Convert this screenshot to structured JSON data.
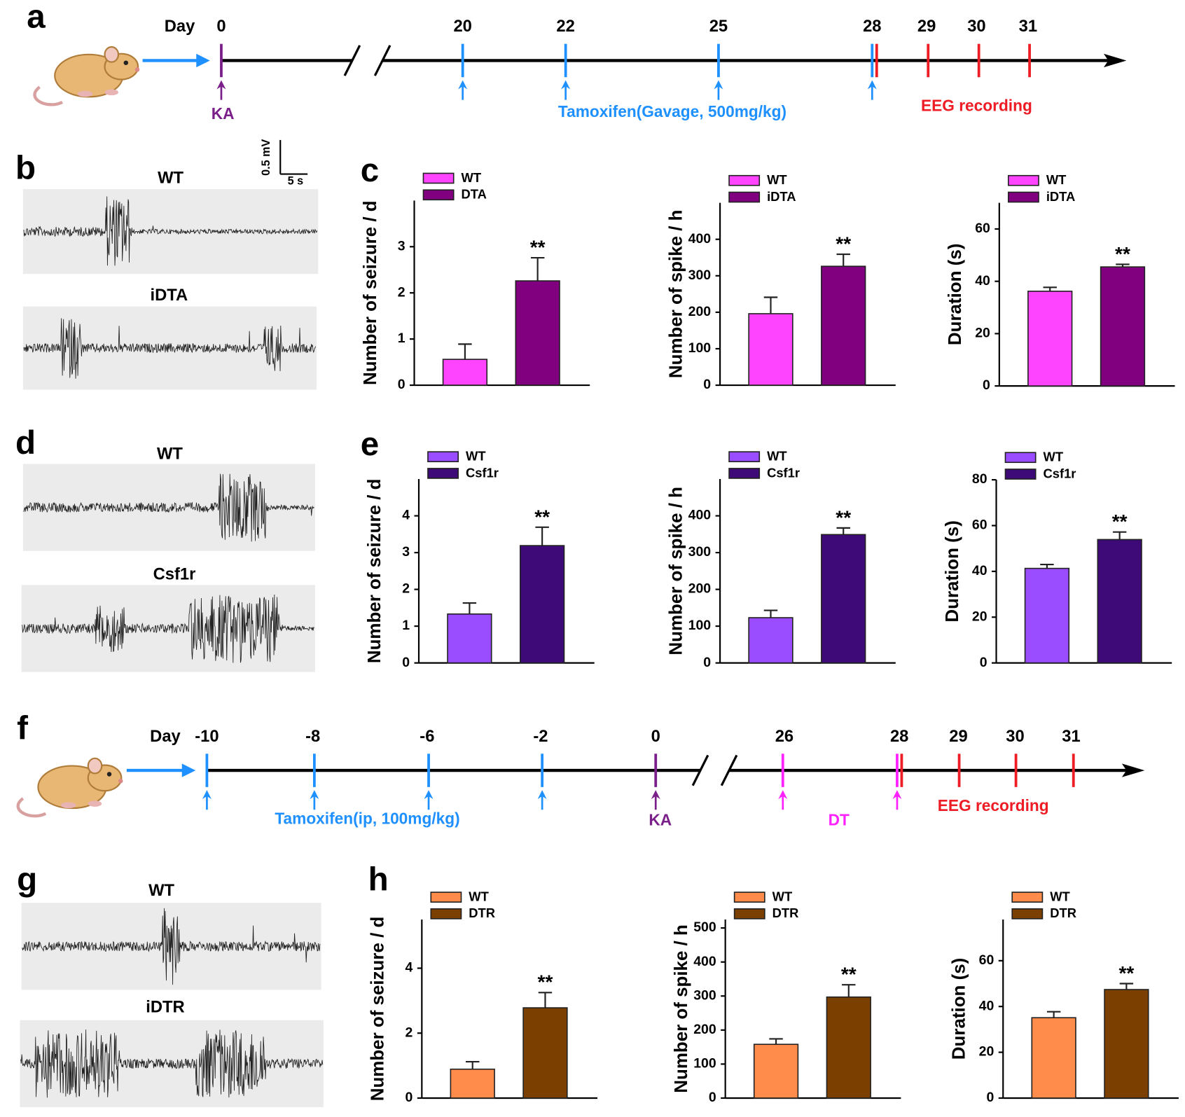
{
  "panel_labels": {
    "a": "a",
    "b": "b",
    "c": "c",
    "d": "d",
    "e": "e",
    "f": "f",
    "g": "g",
    "h": "h"
  },
  "timeline_a": {
    "day_label": "Day",
    "days": [
      "0",
      "20",
      "22",
      "25",
      "28",
      "29",
      "30",
      "31"
    ],
    "ka": "KA",
    "tamoxifen": "Tamoxifen(Gavage, 500mg/kg)",
    "eeg": "EEG recording"
  },
  "timeline_f": {
    "day_label": "Day",
    "days": [
      "-10",
      "-8",
      "-6",
      "-2",
      "0",
      "26",
      "28",
      "29",
      "30",
      "31"
    ],
    "tamoxifen": "Tamoxifen(ip, 100mg/kg)",
    "ka": "KA",
    "dt": "DT",
    "eeg": "EEG recording"
  },
  "traces_b": {
    "labels": [
      "WT",
      "iDTA"
    ],
    "scale_y": "0.5 mV",
    "scale_x": "5 s"
  },
  "traces_d": {
    "labels": [
      "WT",
      "Csf1r"
    ]
  },
  "traces_g": {
    "labels": [
      "WT",
      "iDTR"
    ]
  },
  "chart_data": [
    {
      "type": "bar",
      "ylabel": "Number of seizure / d",
      "ylim": [
        0,
        4
      ],
      "yticks": [
        0,
        1,
        2,
        3
      ],
      "annotation": "**",
      "series": [
        {
          "name": "WT",
          "color": "#ff44ff",
          "values": [
            0.56
          ],
          "errors": [
            0.33
          ]
        },
        {
          "name": "DTA",
          "color": "#800080",
          "values": [
            2.26
          ],
          "errors": [
            0.5
          ]
        }
      ]
    },
    {
      "type": "bar",
      "ylabel": "Number of spike / h",
      "ylim": [
        0,
        500
      ],
      "yticks": [
        0,
        100,
        200,
        300,
        400
      ],
      "annotation": "**",
      "series": [
        {
          "name": "WT",
          "color": "#ff44ff",
          "values": [
            196
          ],
          "errors": [
            45
          ]
        },
        {
          "name": "iDTA",
          "color": "#800080",
          "values": [
            326
          ],
          "errors": [
            33
          ]
        }
      ]
    },
    {
      "type": "bar",
      "ylabel": "Duration (s)",
      "ylim": [
        0,
        70
      ],
      "yticks": [
        0,
        20,
        40,
        60
      ],
      "annotation": "**",
      "series": [
        {
          "name": "WT",
          "color": "#ff44ff",
          "values": [
            36.2
          ],
          "errors": [
            1.5
          ]
        },
        {
          "name": "iDTA",
          "color": "#800080",
          "values": [
            45.5
          ],
          "errors": [
            1
          ]
        }
      ]
    },
    {
      "type": "bar",
      "ylabel": "Number of seizure / d",
      "ylim": [
        0,
        5
      ],
      "yticks": [
        0,
        1,
        2,
        3,
        4
      ],
      "annotation": "**",
      "series": [
        {
          "name": "WT",
          "color": "#9a4dff",
          "values": [
            1.33
          ],
          "errors": [
            0.3
          ]
        },
        {
          "name": "Csf1r",
          "color": "#3d0a78",
          "values": [
            3.19
          ],
          "errors": [
            0.5
          ]
        }
      ]
    },
    {
      "type": "bar",
      "ylabel": "Number of spike / h",
      "ylim": [
        0,
        500
      ],
      "yticks": [
        0,
        100,
        200,
        300,
        400
      ],
      "annotation": "**",
      "series": [
        {
          "name": "WT",
          "color": "#9a4dff",
          "values": [
            123
          ],
          "errors": [
            20
          ]
        },
        {
          "name": "Csf1r",
          "color": "#3d0a78",
          "values": [
            349
          ],
          "errors": [
            18
          ]
        }
      ]
    },
    {
      "type": "bar",
      "ylabel": "Duration (s)",
      "ylim": [
        0,
        80
      ],
      "yticks": [
        0,
        20,
        40,
        60,
        80
      ],
      "annotation": "**",
      "series": [
        {
          "name": "WT",
          "color": "#9a4dff",
          "values": [
            41.3
          ],
          "errors": [
            1.7
          ]
        },
        {
          "name": "Csf1r",
          "color": "#3d0a78",
          "values": [
            53.9
          ],
          "errors": [
            3.3
          ]
        }
      ]
    },
    {
      "type": "bar",
      "ylabel": "Number of seizure / d",
      "ylim": [
        0,
        5.5
      ],
      "yticks": [
        0,
        2,
        4
      ],
      "annotation": "**",
      "series": [
        {
          "name": "WT",
          "color": "#ff8c4a",
          "values": [
            0.89
          ],
          "errors": [
            0.23
          ]
        },
        {
          "name": "DTR",
          "color": "#7b3f00",
          "values": [
            2.78
          ],
          "errors": [
            0.47
          ]
        }
      ]
    },
    {
      "type": "bar",
      "ylabel": "Number of spike / h",
      "ylim": [
        0,
        525
      ],
      "yticks": [
        0,
        100,
        200,
        300,
        400,
        500
      ],
      "annotation": "**",
      "series": [
        {
          "name": "WT",
          "color": "#ff8c4a",
          "values": [
            158
          ],
          "errors": [
            16
          ]
        },
        {
          "name": "DTR",
          "color": "#7b3f00",
          "values": [
            297
          ],
          "errors": [
            36
          ]
        }
      ]
    },
    {
      "type": "bar",
      "ylabel": "Duration (s)",
      "ylim": [
        0,
        78
      ],
      "yticks": [
        0,
        20,
        40,
        60
      ],
      "annotation": "**",
      "series": [
        {
          "name": "WT",
          "color": "#ff8c4a",
          "values": [
            35.1
          ],
          "errors": [
            2.6
          ]
        },
        {
          "name": "DTR",
          "color": "#7b3f00",
          "values": [
            47.4
          ],
          "errors": [
            2.6
          ]
        }
      ]
    }
  ]
}
